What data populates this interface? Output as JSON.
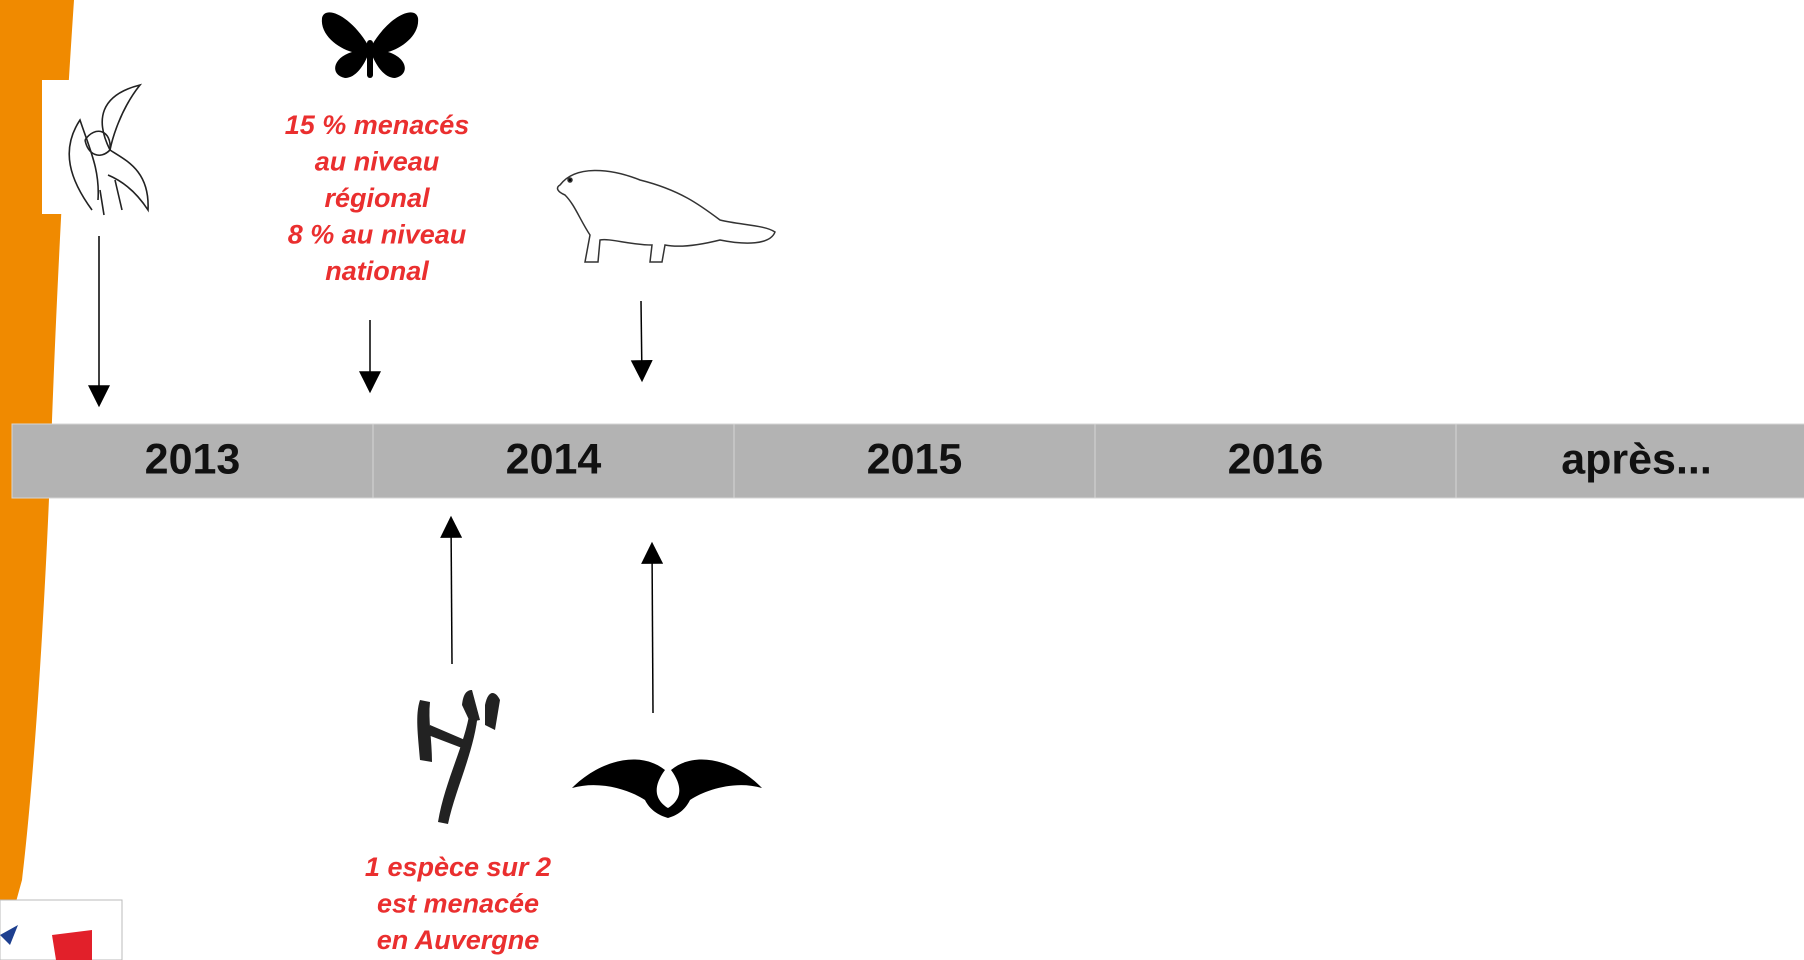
{
  "timeline": {
    "periods": [
      "2013",
      "2014",
      "2015",
      "2016",
      "après..."
    ]
  },
  "annotations": [
    {
      "lines": [
        "15 % menacés",
        "au niveau",
        "régional",
        "8 % au niveau",
        "national"
      ]
    },
    {
      "lines": [
        "1 espèce sur 2",
        "est menacée",
        "en Auvergne"
      ]
    }
  ]
}
